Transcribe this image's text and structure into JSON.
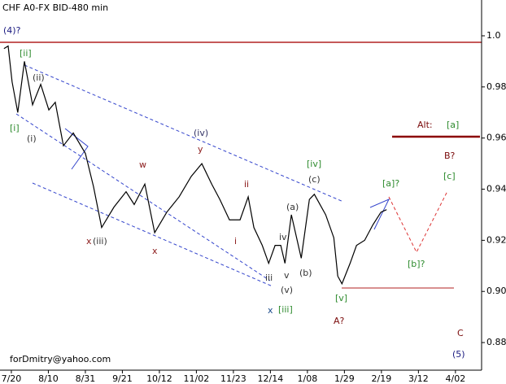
{
  "chart_data": {
    "type": "line",
    "title": "CHF A0-FX BID-480 min",
    "series": [
      {
        "name": "CHF A0-FX",
        "color": "#000000",
        "x": [
          -3.0,
          -1.3,
          0.3,
          2.6,
          5.3,
          8.6,
          11.9,
          15.2,
          17.8,
          21.1,
          25.1,
          30.0,
          33.3,
          36.6,
          41.6,
          46.5,
          49.8,
          54.1,
          58.1,
          63.0,
          68.0,
          72.9,
          77.2,
          81.2,
          84.5,
          88.4,
          92.7,
          96.0,
          98.3,
          101.7,
          104.3,
          106.9,
          109.2,
          110.9,
          113.5,
          117.5,
          120.8,
          122.8,
          127.4,
          130.7,
          132.3,
          134.0,
          137.3,
          139.9,
          143.2,
          146.5,
          149.8,
          152.1
        ],
        "values": [
          0.995,
          0.996,
          0.982,
          0.97,
          0.99,
          0.973,
          0.981,
          0.971,
          0.974,
          0.957,
          0.962,
          0.954,
          0.941,
          0.925,
          0.933,
          0.939,
          0.934,
          0.942,
          0.923,
          0.931,
          0.937,
          0.945,
          0.95,
          0.942,
          0.936,
          0.928,
          0.928,
          0.937,
          0.925,
          0.918,
          0.911,
          0.918,
          0.918,
          0.911,
          0.93,
          0.913,
          0.936,
          0.938,
          0.93,
          0.921,
          0.906,
          0.903,
          0.911,
          0.918,
          0.92,
          0.926,
          0.931,
          0.932
        ]
      }
    ],
    "xlim": [
      -4.6,
      190.6
    ],
    "xticks": [
      {
        "value": 0,
        "label": "7/20"
      },
      {
        "value": 15,
        "label": "8/10"
      },
      {
        "value": 30,
        "label": "8/31"
      },
      {
        "value": 45,
        "label": "9/21"
      },
      {
        "value": 60,
        "label": "10/12"
      },
      {
        "value": 75,
        "label": "11/02"
      },
      {
        "value": 90,
        "label": "11/23"
      },
      {
        "value": 105,
        "label": "12/14"
      },
      {
        "value": 120,
        "label": "1/08"
      },
      {
        "value": 135,
        "label": "1/29"
      },
      {
        "value": 150,
        "label": "2/19"
      },
      {
        "value": 165,
        "label": "3/12"
      },
      {
        "value": 180,
        "label": "4/02"
      }
    ],
    "ylim": [
      0.8692,
      1.014
    ],
    "yticks": [
      0.88,
      {
        "value": 0.9,
        "label": "0.90"
      },
      0.92,
      0.94,
      0.96,
      0.98,
      {
        "value": 1.0,
        "label": "1.0"
      }
    ],
    "annotations": [
      {
        "text": "(4)?",
        "color": "#1a1a80"
      },
      {
        "text": "[ii]",
        "color": "#2e8b2e"
      },
      {
        "text": "(ii)",
        "color": "#333333"
      },
      {
        "text": "[i]",
        "color": "#2e8b2e"
      },
      {
        "text": "(i)",
        "color": "#333333"
      },
      {
        "text": "(iv)",
        "color": "#333366"
      },
      {
        "text": "y",
        "color": "#8b1a1a"
      },
      {
        "text": "w",
        "color": "#8b1a1a"
      },
      {
        "text": "[iv]",
        "color": "#2e8b2e"
      },
      {
        "text": "(c)",
        "color": "#333333"
      },
      {
        "text": "[a]?",
        "color": "#2e8b2e"
      },
      {
        "text": "(a)",
        "color": "#333333"
      },
      {
        "text": "ii",
        "color": "#8b1a1a"
      },
      {
        "text": "i",
        "color": "#8b1a1a"
      },
      {
        "text": "iv",
        "color": "#333333"
      },
      {
        "text": "x",
        "color": "#8b1a1a"
      },
      {
        "text": "(iii)",
        "color": "#333333"
      },
      {
        "text": "x",
        "color": "#8b1a1a"
      },
      {
        "text": "iii",
        "color": "#333333"
      },
      {
        "text": "v",
        "color": "#333333"
      },
      {
        "text": "(b)",
        "color": "#333333"
      },
      {
        "text": "(v)",
        "color": "#333333"
      },
      {
        "text": "x",
        "color": "#1a4a8b"
      },
      {
        "text": "[iii]",
        "color": "#2e8b2e"
      },
      {
        "text": "[v]",
        "color": "#2e8b2e"
      },
      {
        "text": "A?",
        "color": "#7a0a0a"
      },
      {
        "text": "[b]?",
        "color": "#2e8b2e"
      },
      {
        "text": "B?",
        "color": "#7a0a0a"
      },
      {
        "text": "[c]",
        "color": "#2e8b2e"
      },
      {
        "text": "Alt:",
        "color": "#7a0a0a"
      },
      {
        "text": "[a]",
        "color": "#2e8b2e"
      },
      {
        "text": "C",
        "color": "#7a0a0a"
      },
      {
        "text": "(5)",
        "color": "#1a1a80"
      },
      {
        "text": "forDmitry@yahoo.com",
        "color": "#000000"
      }
    ]
  }
}
